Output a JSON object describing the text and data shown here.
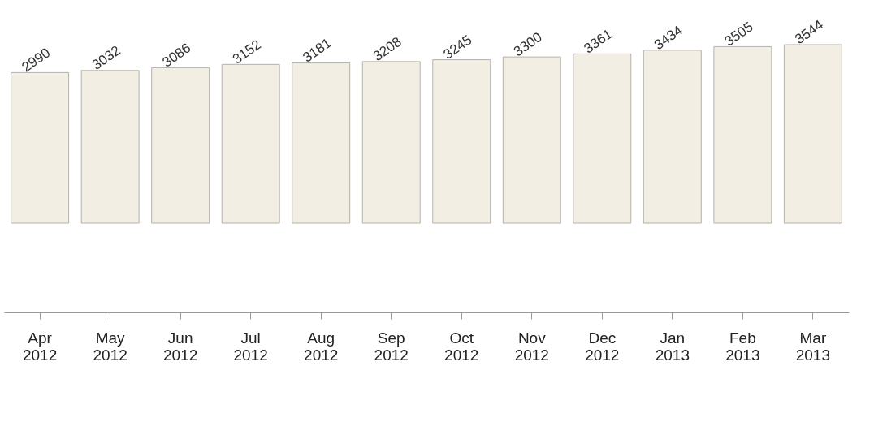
{
  "chart_data": {
    "type": "bar",
    "categories": [
      "Apr 2012",
      "May 2012",
      "Jun 2012",
      "Jul 2012",
      "Aug 2012",
      "Sep 2012",
      "Oct 2012",
      "Nov 2012",
      "Dec 2012",
      "Jan 2013",
      "Feb 2013",
      "Mar 2013"
    ],
    "values": [
      2990,
      3032,
      3086,
      3152,
      3181,
      3208,
      3245,
      3300,
      3361,
      3434,
      3505,
      3544
    ],
    "color": "#f3eee3",
    "data_labels": true,
    "tick_labels": "x",
    "grid": false
  }
}
